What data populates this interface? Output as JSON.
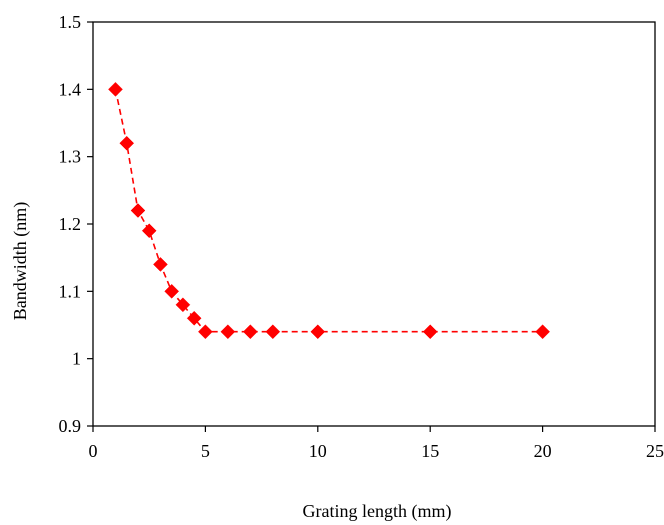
{
  "chart_data": {
    "type": "scatter",
    "title": "",
    "xlabel": "Grating length (mm)",
    "ylabel": "Bandwidth (nm)",
    "xlim": [
      0,
      25
    ],
    "ylim": [
      0.9,
      1.5
    ],
    "xticks": [
      "0",
      "5",
      "10",
      "15",
      "20",
      "25"
    ],
    "yticks": [
      "0.9",
      "1",
      "1.1",
      "1.2",
      "1.3",
      "1.4",
      "1.5"
    ],
    "grid": false,
    "legend": "none",
    "series": [
      {
        "color": "#ff0000",
        "marker": "diamond",
        "line_style": "dashed",
        "x": [
          1,
          1.5,
          2,
          2.5,
          3,
          3.5,
          4,
          4.5,
          5,
          6,
          7,
          8,
          10,
          15,
          20
        ],
        "y": [
          1.4,
          1.32,
          1.22,
          1.19,
          1.14,
          1.1,
          1.08,
          1.06,
          1.04,
          1.04,
          1.04,
          1.04,
          1.04,
          1.04,
          1.04
        ]
      }
    ]
  }
}
